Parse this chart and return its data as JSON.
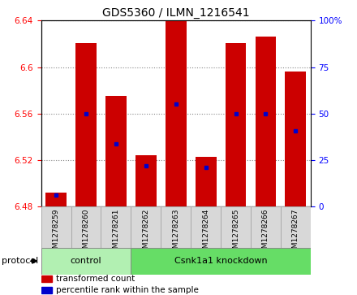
{
  "title": "GDS5360 / ILMN_1216541",
  "samples": [
    "GSM1278259",
    "GSM1278260",
    "GSM1278261",
    "GSM1278262",
    "GSM1278263",
    "GSM1278264",
    "GSM1278265",
    "GSM1278266",
    "GSM1278267"
  ],
  "bar_bottom": 6.48,
  "bar_tops": [
    6.492,
    6.621,
    6.575,
    6.524,
    6.641,
    6.523,
    6.621,
    6.626,
    6.596
  ],
  "blue_dots": [
    6.49,
    6.56,
    6.534,
    6.515,
    6.568,
    6.514,
    6.56,
    6.56,
    6.545
  ],
  "bar_color": "#cc0000",
  "dot_color": "#0000cc",
  "ylim_left": [
    6.48,
    6.64
  ],
  "ylim_right": [
    0,
    100
  ],
  "yticks_left": [
    6.48,
    6.52,
    6.56,
    6.6,
    6.64
  ],
  "yticks_right": [
    0,
    25,
    50,
    75,
    100
  ],
  "ytick_labels_right": [
    "0",
    "25",
    "50",
    "75",
    "100%"
  ],
  "control_count": 3,
  "knockdown_count": 6,
  "control_label": "control",
  "knockdown_label": "Csnk1a1 knockdown",
  "protocol_label": "protocol",
  "green_light": "#b2f0b2",
  "green_dark": "#66dd66",
  "gray_box": "#d8d8d8",
  "legend_items": [
    {
      "color": "#cc0000",
      "label": "transformed count"
    },
    {
      "color": "#0000cc",
      "label": "percentile rank within the sample"
    }
  ],
  "bar_width": 0.7,
  "title_fontsize": 10,
  "tick_fontsize": 7.5,
  "sample_fontsize": 6.5
}
